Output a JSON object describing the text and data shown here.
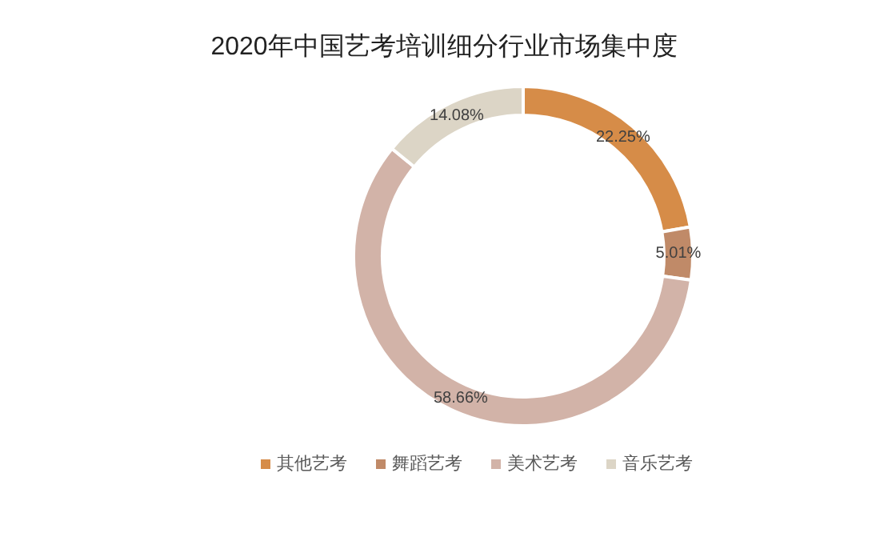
{
  "chart_data": {
    "type": "donut",
    "title": "2020年中国艺考培训细分行业市场集中度",
    "categories": [
      "其他艺考",
      "舞蹈艺考",
      "美术艺考",
      "音乐艺考"
    ],
    "values": [
      22.25,
      5.01,
      58.66,
      14.08
    ],
    "colors": [
      "#d68c48",
      "#c08a68",
      "#d2b3a8",
      "#dcd5c6"
    ],
    "value_labels": [
      "22.25%",
      "5.01%",
      "58.66%",
      "14.08%"
    ],
    "legend": "bottom"
  }
}
